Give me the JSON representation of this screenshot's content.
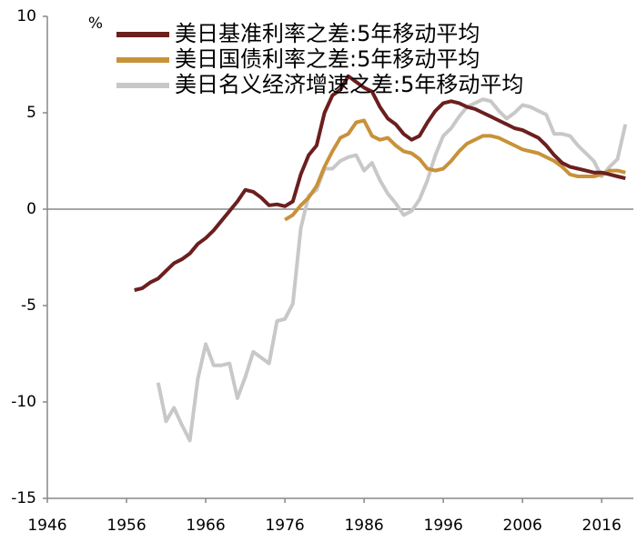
{
  "chart_data": {
    "type": "line",
    "unit": "%",
    "x": [
      1957,
      1958,
      1959,
      1960,
      1961,
      1962,
      1963,
      1964,
      1965,
      1966,
      1967,
      1968,
      1969,
      1970,
      1971,
      1972,
      1973,
      1974,
      1975,
      1976,
      1977,
      1978,
      1979,
      1980,
      1981,
      1982,
      1983,
      1984,
      1985,
      1986,
      1987,
      1988,
      1989,
      1990,
      1991,
      1992,
      1993,
      1994,
      1995,
      1996,
      1997,
      1998,
      1999,
      2000,
      2001,
      2002,
      2003,
      2004,
      2005,
      2006,
      2007,
      2008,
      2009,
      2010,
      2011,
      2012,
      2013,
      2014,
      2015,
      2016,
      2017,
      2018,
      2019
    ],
    "series": [
      {
        "name": "美日基准利率之差:5年移动平均",
        "color": "#6b1f1f",
        "values": [
          -4.2,
          -4.1,
          -3.8,
          -3.6,
          -3.2,
          -2.8,
          -2.6,
          -2.3,
          -1.8,
          -1.5,
          -1.1,
          -0.6,
          -0.1,
          0.4,
          1.0,
          0.9,
          0.6,
          0.2,
          0.25,
          0.15,
          0.4,
          1.8,
          2.8,
          3.3,
          5.0,
          5.9,
          6.2,
          6.9,
          6.6,
          6.3,
          6.1,
          5.3,
          4.7,
          4.4,
          3.9,
          3.6,
          3.8,
          4.5,
          5.1,
          5.5,
          5.6,
          5.5,
          5.3,
          5.2,
          5.0,
          4.8,
          4.6,
          4.4,
          4.2,
          4.1,
          3.9,
          3.7,
          3.3,
          2.8,
          2.4,
          2.2,
          2.1,
          2.0,
          1.9,
          1.9,
          1.8,
          1.7,
          1.6
        ]
      },
      {
        "name": "美日国债利率之差:5年移动平均",
        "color": "#c8923a",
        "values": [
          null,
          null,
          null,
          null,
          null,
          null,
          null,
          null,
          null,
          null,
          null,
          null,
          null,
          null,
          null,
          null,
          null,
          null,
          null,
          -0.55,
          -0.3,
          0.2,
          0.6,
          1.2,
          2.2,
          3.0,
          3.7,
          3.9,
          4.5,
          4.6,
          3.8,
          3.6,
          3.7,
          3.3,
          3.0,
          2.9,
          2.6,
          2.1,
          2.0,
          2.1,
          2.5,
          3.0,
          3.4,
          3.6,
          3.8,
          3.8,
          3.7,
          3.5,
          3.3,
          3.1,
          3.0,
          2.9,
          2.7,
          2.5,
          2.2,
          1.8,
          1.7,
          1.7,
          1.7,
          1.8,
          2.0,
          2.0,
          1.9
        ]
      },
      {
        "name": "美日名义经济增速之差:5年移动平均",
        "color": "#c8c8c8",
        "values": [
          null,
          null,
          null,
          -9.0,
          -11.0,
          -10.3,
          -11.2,
          -12.0,
          -8.8,
          -7.0,
          -8.1,
          -8.1,
          -8.0,
          -9.8,
          -8.7,
          -7.4,
          -7.7,
          -8.0,
          -5.8,
          -5.7,
          -4.9,
          -1.0,
          0.7,
          1.0,
          2.1,
          2.1,
          2.5,
          2.7,
          2.8,
          2.0,
          2.4,
          1.5,
          0.8,
          0.3,
          -0.3,
          -0.1,
          0.5,
          1.5,
          2.8,
          3.8,
          4.2,
          4.8,
          5.3,
          5.5,
          5.7,
          5.6,
          5.1,
          4.7,
          5.0,
          5.4,
          5.3,
          5.1,
          4.9,
          3.9,
          3.9,
          3.8,
          3.3,
          2.9,
          2.5,
          1.7,
          2.2,
          2.6,
          4.4
        ]
      }
    ],
    "xlim": [
      1946,
      2020
    ],
    "xticks": [
      1946,
      1956,
      1966,
      1976,
      1986,
      1996,
      2006,
      2016
    ],
    "ylim": [
      -15,
      10
    ],
    "yticks": [
      -15,
      -10,
      -5,
      0,
      5,
      10
    ],
    "grid": false,
    "legend": "top"
  }
}
